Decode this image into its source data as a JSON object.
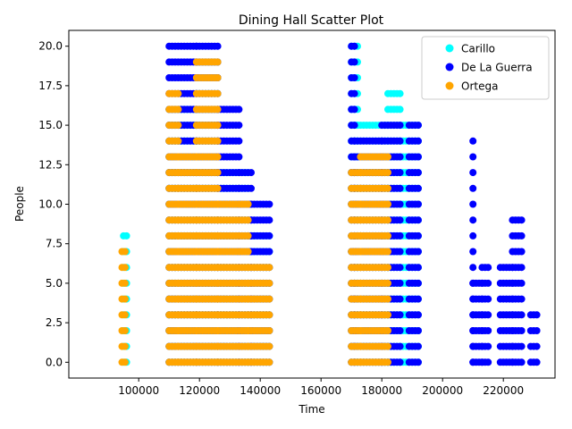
{
  "chart_data": {
    "type": "scatter",
    "title": "Dining Hall Scatter Plot",
    "xlabel": "Time",
    "ylabel": "People",
    "xlim": [
      77000,
      237000
    ],
    "ylim": [
      -1.0,
      21.0
    ],
    "xticks": [
      100000,
      120000,
      140000,
      160000,
      180000,
      200000,
      220000
    ],
    "xtick_labels": [
      "100000",
      "120000",
      "140000",
      "160000",
      "180000",
      "200000",
      "220000"
    ],
    "yticks": [
      0.0,
      2.5,
      5.0,
      7.5,
      10.0,
      12.5,
      15.0,
      17.5,
      20.0
    ],
    "ytick_labels": [
      "0.0",
      "2.5",
      "5.0",
      "7.5",
      "10.0",
      "12.5",
      "15.0",
      "17.5",
      "20.0"
    ],
    "grid": false,
    "legend_position": "top-right",
    "series": [
      {
        "name": "Carillo",
        "color": "#00ffff",
        "bands": [
          {
            "x": [
              95000,
              96000
            ],
            "ymax": 8
          },
          {
            "x": [
              110000,
              119000
            ],
            "ymax": 16
          },
          {
            "x": [
              119000,
              126000
            ],
            "ymax": 19
          },
          {
            "x": [
              126000,
              136000
            ],
            "ymax": 12
          },
          {
            "x": [
              136000,
              143000
            ],
            "ymax": 8
          },
          {
            "x": [
              170000,
              172000
            ],
            "ymax": 20
          },
          {
            "x": [
              172000,
              182000
            ],
            "ymax": 15
          },
          {
            "x": [
              182000,
              186000
            ],
            "ymax": 17
          },
          {
            "x": [
              186000,
              192000
            ],
            "ymax": 15
          }
        ]
      },
      {
        "name": "De La Guerra",
        "color": "#0000ff",
        "bands": [
          {
            "x": [
              110000,
              119000
            ],
            "ymax": 20
          },
          {
            "x": [
              119000,
              126000
            ],
            "ymax": 20
          },
          {
            "x": [
              126000,
              133000
            ],
            "ymax": 16
          },
          {
            "x": [
              133000,
              137000
            ],
            "ymax": 12
          },
          {
            "x": [
              137000,
              143000
            ],
            "ymax": 10
          },
          {
            "x": [
              170000,
              171000
            ],
            "ymax": 20
          },
          {
            "x": [
              171000,
              180000
            ],
            "ymax": 14
          },
          {
            "x": [
              180000,
              186000
            ],
            "ymax": 15
          },
          {
            "x": [
              189000,
              192000
            ],
            "ymax": 15
          },
          {
            "x": [
              210000,
              210500
            ],
            "ymax": 14
          },
          {
            "x": [
              210000,
              213000
            ],
            "ymax": 5
          },
          {
            "x": [
              213000,
              215000
            ],
            "ymax": 6
          },
          {
            "x": [
              219000,
              223000
            ],
            "ymax": 6
          },
          {
            "x": [
              223000,
              226000
            ],
            "ymax": 9
          },
          {
            "x": [
              229000,
              231000
            ],
            "ymax": 3
          }
        ]
      },
      {
        "name": "Ortega",
        "color": "#ffa500",
        "bands": [
          {
            "x": [
              94500,
              96000
            ],
            "ymax": 7
          },
          {
            "x": [
              110000,
              113000
            ],
            "ymax": 17
          },
          {
            "x": [
              113000,
              119000
            ],
            "ymax": 13
          },
          {
            "x": [
              119000,
              126000
            ],
            "ymax": 19
          },
          {
            "x": [
              126000,
              136000
            ],
            "ymax": 10
          },
          {
            "x": [
              136000,
              143000
            ],
            "ymax": 6
          },
          {
            "x": [
              170000,
              173000
            ],
            "ymax": 12
          },
          {
            "x": [
              173000,
              182000
            ],
            "ymax": 13
          }
        ]
      }
    ]
  }
}
